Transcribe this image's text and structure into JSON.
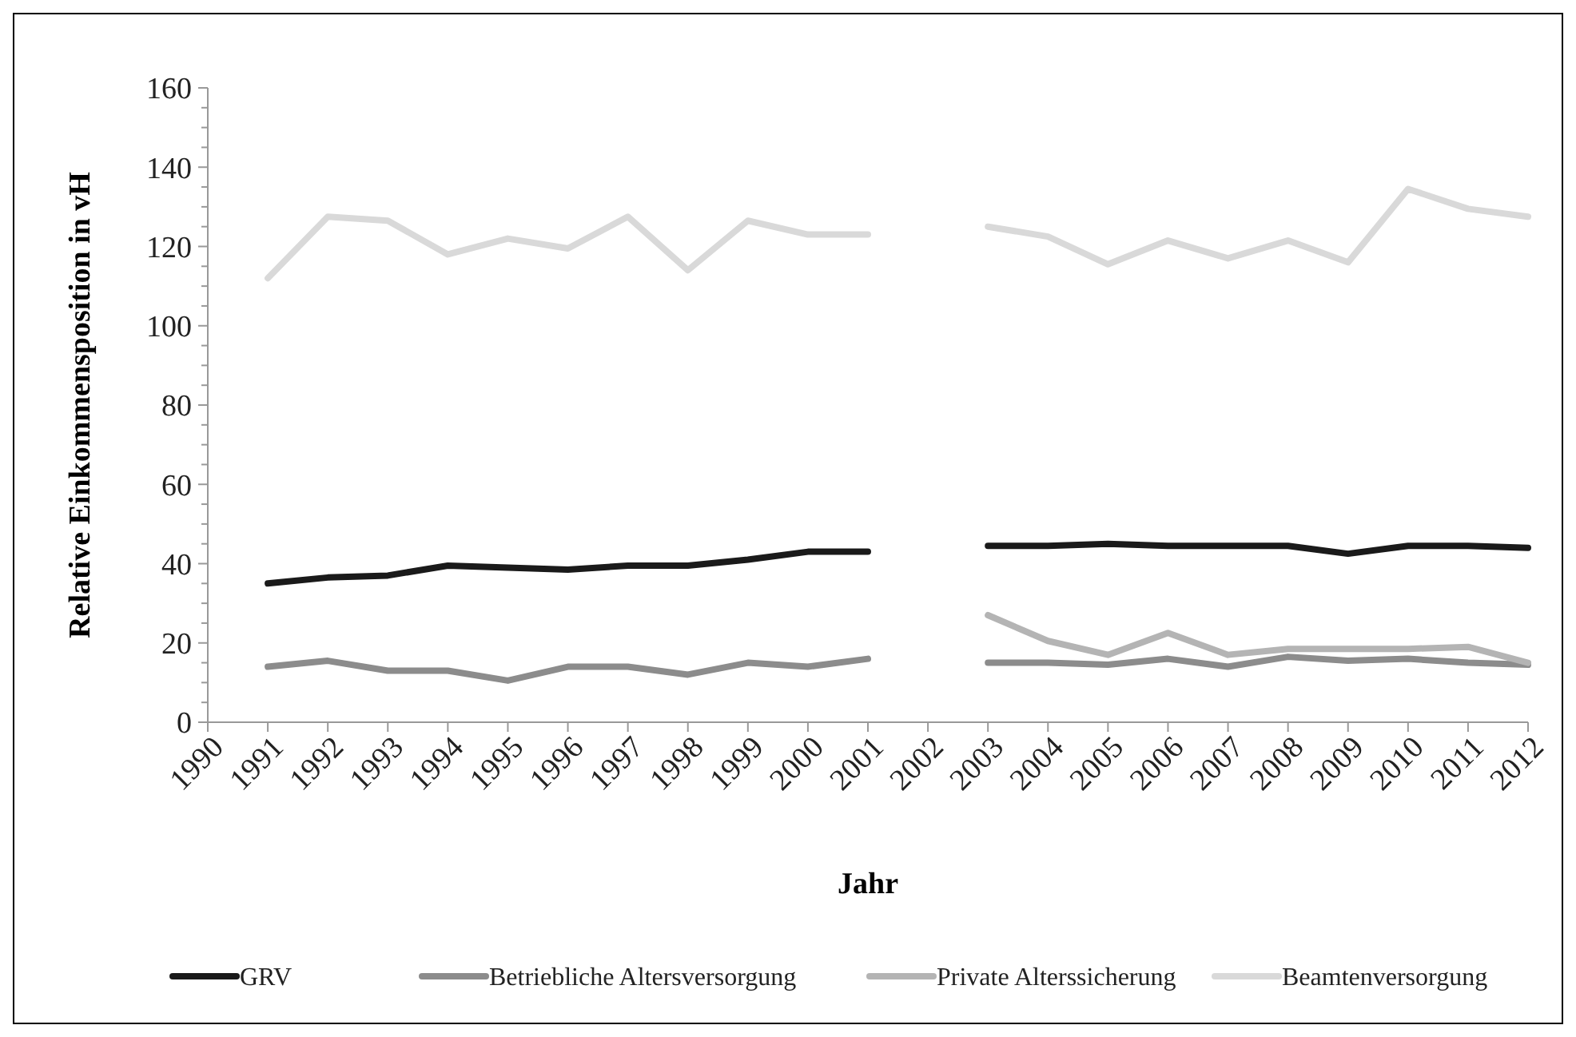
{
  "chart_data": {
    "type": "line",
    "xlabel": "Jahr",
    "ylabel": "Relative Einkommensposition in vH",
    "categories": [
      "1990",
      "1991",
      "1992",
      "1993",
      "1994",
      "1995",
      "1996",
      "1997",
      "1998",
      "1999",
      "2000",
      "2001",
      "2002",
      "2003",
      "2004",
      "2005",
      "2006",
      "2007",
      "2008",
      "2009",
      "2010",
      "2011",
      "2012"
    ],
    "series": [
      {
        "name": "GRV",
        "color": "#1a1a1a",
        "values": [
          null,
          35,
          36.5,
          37,
          39.5,
          39,
          38.5,
          39.5,
          39.5,
          41,
          43,
          43,
          null,
          44.5,
          44.5,
          45,
          44.5,
          44.5,
          44.5,
          42.5,
          44.5,
          44.5,
          44
        ]
      },
      {
        "name": "Betriebliche Altersversorgung",
        "color": "#8c8c8c",
        "values": [
          null,
          14,
          15.5,
          13,
          13,
          10.5,
          14,
          14,
          12,
          15,
          14,
          16,
          null,
          15,
          15,
          14.5,
          16,
          14,
          16.5,
          15.5,
          16,
          15,
          14.5
        ]
      },
      {
        "name": "Private Alterssicherung",
        "color": "#b4b4b4",
        "values": [
          null,
          null,
          null,
          null,
          null,
          null,
          null,
          null,
          null,
          null,
          null,
          null,
          null,
          27,
          20.5,
          17,
          22.5,
          17,
          18.5,
          18.5,
          18.5,
          19,
          15
        ]
      },
      {
        "name": "Beamtenversorgung",
        "color": "#d9d9d9",
        "values": [
          null,
          112,
          127.5,
          126.5,
          118,
          122,
          119.5,
          127.5,
          114,
          126.5,
          123,
          123,
          null,
          125,
          122.5,
          115.5,
          121.5,
          117,
          121.5,
          116,
          134.5,
          129.5,
          127.5
        ]
      }
    ],
    "ylim": [
      0,
      160
    ],
    "yticks": [
      0,
      {
        "value": 5,
        "label": null
      },
      {
        "value": 10,
        "label": null
      },
      {
        "value": 15,
        "label": null
      },
      20,
      {
        "value": 25,
        "label": null
      },
      {
        "value": 30,
        "label": null
      },
      {
        "value": 35,
        "label": null
      },
      40,
      {
        "value": 45,
        "label": null
      },
      {
        "value": 50,
        "label": null
      },
      {
        "value": 55,
        "label": null
      },
      60,
      {
        "value": 65,
        "label": null
      },
      {
        "value": 70,
        "label": null
      },
      {
        "value": 75,
        "label": null
      },
      80,
      {
        "value": 85,
        "label": null
      },
      {
        "value": 90,
        "label": null
      },
      {
        "value": 95,
        "label": null
      },
      100,
      {
        "value": 105,
        "label": null
      },
      {
        "value": 110,
        "label": null
      },
      {
        "value": 115,
        "label": null
      },
      120,
      {
        "value": 125,
        "label": null
      },
      {
        "value": 130,
        "label": null
      },
      {
        "value": 135,
        "label": null
      },
      140,
      {
        "value": 145,
        "label": null
      },
      {
        "value": 150,
        "label": null
      },
      {
        "value": 155,
        "label": null
      },
      160
    ],
    "grid": false,
    "legend": "bottom",
    "marker": "none",
    "line_style": "solid"
  }
}
